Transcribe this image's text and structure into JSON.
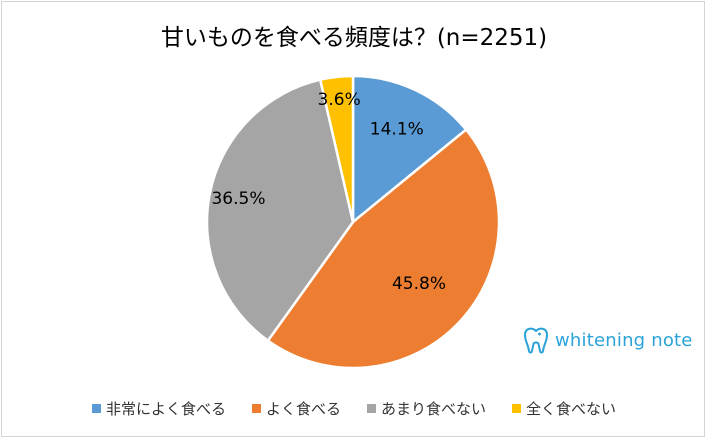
{
  "chart_data": {
    "type": "pie",
    "title": "甘いものを食べる頻度は？(n=2251)",
    "slices": [
      {
        "label": "非常によく食べる",
        "value": 14.1,
        "display": "14.1%",
        "color": "#5b9bd5"
      },
      {
        "label": "よく食べる",
        "value": 45.8,
        "display": "45.8%",
        "color": "#ed7d31"
      },
      {
        "label": "あまり食べない",
        "value": 36.5,
        "display": "36.5%",
        "color": "#a5a5a5"
      },
      {
        "label": "全く食べない",
        "value": 3.6,
        "display": "3.6%",
        "color": "#ffc000"
      }
    ],
    "start_angle": "12 o'clock",
    "direction": "clockwise",
    "legend_position": "bottom"
  },
  "brand": {
    "name": "whitening note",
    "color": "#2aa3d9",
    "icon": "tooth-icon"
  }
}
